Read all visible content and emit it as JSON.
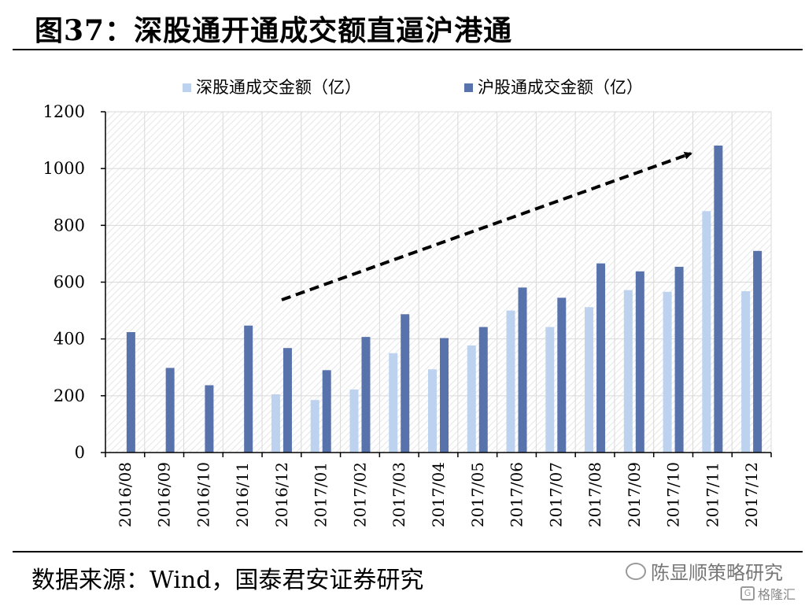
{
  "title": "图37：深股通开通成交额直逼沪港通",
  "source": "数据来源：Wind，国泰君安证券研究",
  "watermark": {
    "account": "陈显顺策略研究",
    "site": "格隆汇"
  },
  "colors": {
    "series1": "#bcd2ee",
    "series2": "#5872ab",
    "grid": "#d9d9d9",
    "hatch": "#e4e4e4",
    "arrow": "#000000"
  },
  "chart_data": {
    "type": "bar",
    "categories": [
      "2016/08",
      "2016/09",
      "2016/10",
      "2016/11",
      "2016/12",
      "2017/01",
      "2017/02",
      "2017/03",
      "2017/04",
      "2017/05",
      "2017/06",
      "2017/07",
      "2017/08",
      "2017/09",
      "2017/10",
      "2017/11",
      "2017/12"
    ],
    "series": [
      {
        "name": "深股通成交金额（亿）",
        "values": [
          0,
          0,
          0,
          0,
          205,
          185,
          222,
          350,
          293,
          377,
          500,
          442,
          512,
          572,
          566,
          850,
          568
        ]
      },
      {
        "name": "沪股通成交金额（亿）",
        "values": [
          424,
          298,
          237,
          447,
          368,
          290,
          407,
          487,
          403,
          442,
          581,
          545,
          666,
          638,
          654,
          1081,
          710
        ]
      }
    ],
    "ylim": [
      0,
      1200
    ],
    "yticks": [
      0,
      200,
      400,
      600,
      800,
      1000,
      1200
    ],
    "grid": true,
    "legend_position": "top",
    "annotation": "dashed trend arrow rising from 2016/12 to 2017/11"
  }
}
